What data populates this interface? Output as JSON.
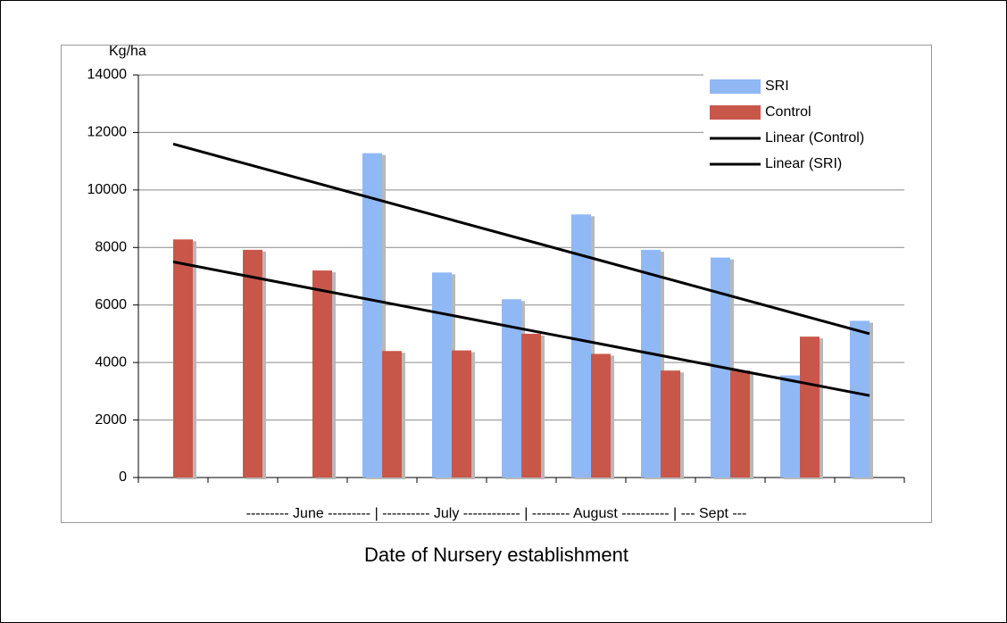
{
  "chart_data": {
    "type": "bar",
    "y_label": "Kg/ha",
    "x_label": "--------- June --------- | ---------- July ------------ | -------- August ---------- | --- Sept ---",
    "title": "Date of Nursery establishment",
    "categories": [
      null,
      null,
      null,
      null,
      null,
      null,
      null,
      null,
      null,
      null,
      null
    ],
    "series": [
      {
        "name": "SRI",
        "color": "#8fb8f5",
        "values": [
          null,
          null,
          null,
          11280,
          7130,
          6200,
          9150,
          7920,
          7650,
          3550,
          5450
        ]
      },
      {
        "name": "Control",
        "color": "#c8574a",
        "values": [
          8280,
          7920,
          7200,
          4400,
          4420,
          5000,
          4300,
          3720,
          3720,
          4900,
          null
        ]
      },
      {
        "name": "Linear (Control)",
        "type": "line",
        "color": "#000000",
        "values": [
          11600,
          10940,
          10280,
          9620,
          8960,
          8300,
          7640,
          6980,
          6320,
          5660,
          5000
        ]
      },
      {
        "name": "Linear (SRI)",
        "type": "line",
        "color": "#000000",
        "values": [
          7500,
          7035,
          6570,
          6105,
          5640,
          5175,
          4710,
          4245,
          3780,
          3315,
          2850
        ]
      }
    ],
    "ylim": [
      0,
      14000
    ],
    "yticks": [
      0,
      2000,
      4000,
      6000,
      8000,
      10000,
      12000,
      14000
    ],
    "grid": true,
    "legend": "top-right"
  }
}
